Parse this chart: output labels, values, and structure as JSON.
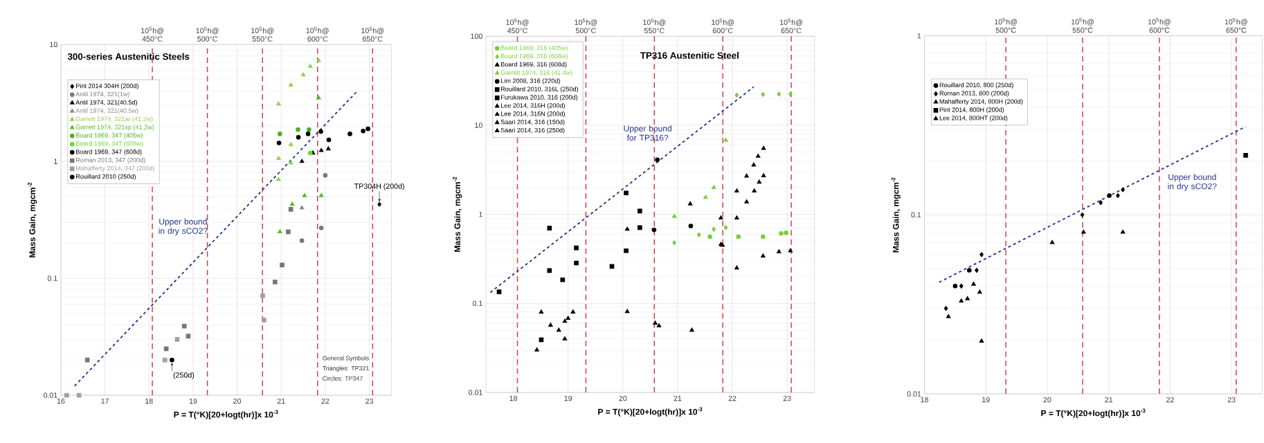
{
  "chart_data": [
    {
      "type": "scatter",
      "title": "300-series Austenitic Steels",
      "xlabel": "P = T(°K)[20+logt(hr)]x 10$^{-3}$",
      "ylabel": "Mass Gain, mgcm$^{-2}$",
      "log": true,
      "grid": true,
      "legend": "top left",
      "xlim": [
        16,
        23.5
      ],
      "xticks": [
        16,
        17,
        18,
        19,
        20,
        21,
        22,
        23
      ],
      "ylim": [
        0.01,
        10
      ],
      "yticks": [
        0.01,
        0.1,
        1,
        10
      ],
      "series": [
        {
          "name": "Pint 2014 304H (200d)",
          "color": "#000000",
          "marker": "diamond",
          "x": [
            23.23
          ],
          "values": [
            0.43
          ]
        },
        {
          "name": "Antil 1974, 321(1w)",
          "color": "#7a7a7a",
          "marker": "circle",
          "x": [
            21.47,
            21.91,
            22.0
          ],
          "values": [
            0.21,
            0.27,
            0.76
          ]
        },
        {
          "name": "Antil 1974, 321(40.5d)",
          "color": "#000000",
          "marker": "triangle",
          "x": [
            21.47,
            21.72,
            21.91,
            22.07
          ],
          "values": [
            1.0,
            1.18,
            1.24,
            1.28
          ]
        },
        {
          "name": "Antil 1974, 321(40.5w)",
          "color": "#8a8a8a",
          "marker": "triangle",
          "x": [
            21.47
          ],
          "values": [
            0.4
          ]
        },
        {
          "name": "Garrett 1974, 321ar (41.2w)",
          "color": "#8fd14f",
          "marker": "triangle",
          "x": [
            20.94,
            21.22,
            21.5,
            21.66,
            21.85,
            20.94,
            21.22,
            20.94,
            21.22
          ],
          "values": [
            3.1,
            4.5,
            5.5,
            6.5,
            7.3,
            1.06,
            1.39,
            0.7,
            0.97
          ]
        },
        {
          "name": "Garrett 1974, 321sp (41.2w)",
          "color": "#5cb82e",
          "marker": "triangle",
          "x": [
            21.85,
            21.53,
            21.91,
            21.25,
            20.97
          ],
          "values": [
            3.5,
            0.51,
            0.51,
            0.43,
            0.25
          ]
        },
        {
          "name": "Board 1969, 347 (405w)",
          "color": "#4caf2a",
          "marker": "circle",
          "x": [
            20.97,
            21.38,
            21.63
          ],
          "values": [
            1.72,
            1.87,
            1.87
          ]
        },
        {
          "name": "Board 1969, 347 (608w)",
          "color": "#66dd33",
          "marker": "circle",
          "x": [
            21.66
          ],
          "values": [
            1.18
          ]
        },
        {
          "name": "Board 1969, 347 (608d)",
          "color": "#000000",
          "marker": "circle",
          "x": [
            20.95,
            21.39,
            21.61,
            21.9,
            22.08,
            22.56,
            22.86,
            22.97
          ],
          "values": [
            1.44,
            1.61,
            1.72,
            1.8,
            1.53,
            1.72,
            1.82,
            1.9
          ]
        },
        {
          "name": "Roman 2013, 347 (200d)",
          "color": "#777777",
          "marker": "square",
          "x": [
            16.6,
            18.39,
            18.8,
            18.89,
            21.02,
            20.86,
            21.16,
            21.22
          ],
          "values": [
            0.02,
            0.025,
            0.039,
            0.032,
            0.13,
            0.093,
            0.25,
            0.39
          ]
        },
        {
          "name": "Mahafferty 2014, 347 (200d)",
          "color": "#a0a0a0",
          "marker": "square",
          "x": [
            16.13,
            16.41,
            20.58,
            20.61,
            18.64,
            18.36
          ],
          "values": [
            0.01,
            0.01,
            0.071,
            0.044,
            0.03,
            0.02
          ]
        },
        {
          "name": "Rouillard 2010 (250d)",
          "color": "#000000",
          "marker": "circle",
          "x": [
            18.52
          ],
          "values": [
            0.02
          ]
        },
        {
          "type": "line",
          "name": "Upper bound in dry sCO2?",
          "color": "#26348f",
          "line_style": "dashed",
          "marker": "none",
          "x": [
            16.31,
            22.7
          ],
          "values": [
            0.012,
            3.9
          ]
        }
      ],
      "ref_lines": [
        {
          "axis": "x",
          "value": 18.075,
          "label": "10$^{5}$h@ 450°C",
          "color": "#d9393e",
          "line_style": "dashed"
        },
        {
          "axis": "x",
          "value": 19.325,
          "label": "10$^{5}$h@ 500°C",
          "color": "#d9393e",
          "line_style": "dashed"
        },
        {
          "axis": "x",
          "value": 20.575,
          "label": "10$^{5}$h@ 550°C",
          "color": "#d9393e",
          "line_style": "dashed"
        },
        {
          "axis": "x",
          "value": 21.825,
          "label": "10$^{5}$h@ 600°C",
          "color": "#d9393e",
          "line_style": "dashed"
        },
        {
          "axis": "x",
          "value": 23.075,
          "label": "10$^{5}$h@ 650°C",
          "color": "#d9393e",
          "line_style": "dashed"
        }
      ],
      "annotations": [
        {
          "text": "TP304H (200d)",
          "x": 23.23,
          "y": 0.43
        },
        {
          "text": "(250d)",
          "x": 18.52,
          "y": 0.02
        },
        "General Symbols",
        "Triangles: TP321",
        "Circles: TP347"
      ]
    },
    {
      "type": "scatter",
      "title": "TP316 Austenitic Steel",
      "xlabel": "P = T(°K)[20+logt(hr)]x 10$^{-3}$",
      "ylabel": "Mass Gain, mgcm$^{-2}$",
      "log": true,
      "grid": true,
      "legend": "top left",
      "xlim": [
        17.5,
        23.5
      ],
      "xticks": [
        18,
        19,
        20,
        21,
        22,
        23
      ],
      "ylim": [
        0.01,
        100
      ],
      "yticks": [
        0.01,
        0.1,
        1,
        10,
        100
      ],
      "series": [
        {
          "name": "Board 1969, 316 (405w)",
          "color": "#7ccf3c",
          "marker": "circle",
          "x": [
            21.59,
            22.11,
            22.56,
            22.89,
            22.98
          ],
          "values": [
            0.56,
            0.56,
            0.56,
            0.61,
            0.62
          ]
        },
        {
          "name": "Board 1969, 316 (608w)",
          "color": "#7ccf3c",
          "marker": "diamond",
          "x": [
            22.08,
            22.56,
            22.85,
            23.06,
            20.94,
            21.39,
            21.66,
            21.88
          ],
          "values": [
            21.8,
            22.2,
            22.4,
            22.4,
            0.48,
            0.59,
            0.68,
            0.71
          ]
        },
        {
          "name": "Board 1969, 316 (608d)",
          "color": "#000000",
          "marker": "triangle",
          "x": [
            22.56,
            22.85,
            23.06,
            22.08,
            21.82
          ],
          "values": [
            0.34,
            0.38,
            0.39,
            0.25,
            0.45
          ]
        },
        {
          "name": "Garrett 1974, 316 (41.4w)",
          "color": "#7ccf3c",
          "marker": "triangle",
          "x": [
            21.88,
            21.66,
            21.51,
            20.94
          ],
          "values": [
            6.8,
            2.0,
            1.55,
            0.95
          ]
        },
        {
          "name": "Lim 2008, 316 (220d)",
          "color": "#000000",
          "marker": "circle",
          "x": [
            20.63,
            20.57,
            21.24
          ],
          "values": [
            4.1,
            0.67,
            0.74
          ]
        },
        {
          "name": "Rouillard 2010, 316L (250d)",
          "color": "#000000",
          "marker": "square",
          "x": [
            18.51
          ],
          "values": [
            0.039
          ]
        },
        {
          "name": "Furukawa 2010, 316 (200d)",
          "color": "#000000",
          "marker": "square",
          "x": [
            17.74,
            18.66,
            18.66,
            18.9,
            19.15,
            19.15,
            19.8,
            20.06,
            20.31,
            20.31,
            20.06
          ],
          "values": [
            0.135,
            0.7,
            0.234,
            0.184,
            0.42,
            0.284,
            0.26,
            0.39,
            0.71,
            1.09,
            1.74
          ]
        },
        {
          "name": "Lee 2014, 316H (200d)",
          "color": "#000000",
          "marker": "triangle",
          "x": [
            20.08,
            21.23,
            22.08
          ],
          "values": [
            0.081,
            1.31,
            0.91
          ]
        },
        {
          "name": "Lee 2014, 316N (200d)",
          "color": "#000000",
          "marker": "triangle",
          "x": [
            20.08,
            21.79
          ],
          "values": [
            0.68,
            0.46
          ]
        },
        {
          "name": "Saari 2014, 316 (150d)",
          "color": "#000000",
          "marker": "triangle",
          "x": [
            18.51,
            18.68,
            18.83,
            18.94,
            19.09,
            18.43,
            20.59,
            20.66,
            21.26,
            22.26,
            22.4,
            22.49
          ],
          "values": [
            0.08,
            0.057,
            0.05,
            0.063,
            0.08,
            0.03,
            0.06,
            0.056,
            0.05,
            1.38,
            1.83,
            2.3
          ]
        },
        {
          "name": "Saari 2014, 316 (250d)",
          "color": "#000000",
          "marker": "triangle",
          "x": [
            18.94,
            19.0,
            21.79,
            22.08,
            22.26,
            22.39,
            22.47,
            22.57,
            22.57
          ],
          "values": [
            0.04,
            0.068,
            0.91,
            1.83,
            2.69,
            3.59,
            4.49,
            5.5,
            2.72
          ]
        },
        {
          "type": "line",
          "name": "Upper bound for TP316?",
          "color": "#26348f",
          "line_style": "dashed",
          "marker": "none",
          "x": [
            17.58,
            22.39
          ],
          "values": [
            0.133,
            27
          ]
        }
      ],
      "ref_lines": [
        {
          "axis": "x",
          "value": 18.075,
          "label": "10$^{5}$h@ 450°C",
          "color": "#d9393e",
          "line_style": "dashed"
        },
        {
          "axis": "x",
          "value": 19.325,
          "label": "10$^{5}$h@ 500°C",
          "color": "#d9393e",
          "line_style": "dashed"
        },
        {
          "axis": "x",
          "value": 20.575,
          "label": "10$^{5}$h@ 550°C",
          "color": "#d9393e",
          "line_style": "dashed"
        },
        {
          "axis": "x",
          "value": 21.825,
          "label": "10$^{5}$h@ 600°C",
          "color": "#d9393e",
          "line_style": "dashed"
        },
        {
          "axis": "x",
          "value": 23.075,
          "label": "10$^{5}$h@ 650°C",
          "color": "#d9393e",
          "line_style": "dashed"
        }
      ]
    },
    {
      "type": "scatter",
      "xlabel": "P = T(°K)[20+logt(hr)]x 10$^{-3}$",
      "ylabel": "Mass Gain, mgcm$^{-2}$",
      "log": true,
      "grid": true,
      "legend": "top left",
      "xlim": [
        18,
        23.5
      ],
      "xticks": [
        18,
        19,
        20,
        21,
        22,
        23
      ],
      "ylim": [
        0.01,
        1
      ],
      "yticks": [
        0.01,
        0.1,
        1
      ],
      "series": [
        {
          "name": "Rouillard 2010, 800 (250d)",
          "color": "#000000",
          "marker": "circle",
          "x": [
            18.5,
            18.73,
            21.01
          ],
          "values": [
            0.04,
            0.049,
            0.128
          ]
        },
        {
          "name": "Roman 2013, 800 (200d)",
          "color": "#000000",
          "marker": "diamond",
          "x": [
            18.35,
            18.6,
            18.85,
            18.93,
            20.57,
            20.87,
            21.15,
            21.23
          ],
          "values": [
            0.03,
            0.04,
            0.049,
            0.06,
            0.1,
            0.117,
            0.128,
            0.138
          ]
        },
        {
          "name": "Mahafferty 2014, 800H (200d)",
          "color": "#000000",
          "marker": "triangle",
          "x": [
            18.39,
            18.6,
            18.7,
            18.8,
            18.9,
            20.59
          ],
          "values": [
            0.027,
            0.033,
            0.034,
            0.041,
            0.037,
            0.08
          ]
        },
        {
          "name": "Pint 2014, 800H (200d)",
          "color": "#000000",
          "marker": "square",
          "x": [
            23.23
          ],
          "values": [
            0.215
          ]
        },
        {
          "name": "Lee 2014, 800HT (200d)",
          "color": "#000000",
          "marker": "triangle",
          "x": [
            18.93,
            20.08,
            21.23
          ],
          "values": [
            0.0197,
            0.07,
            0.08
          ]
        },
        {
          "type": "line",
          "name": "Upper bound in dry sCO2?",
          "color": "#26348f",
          "line_style": "dashed",
          "marker": "none",
          "x": [
            18.24,
            23.23
          ],
          "values": [
            0.042,
            0.311
          ]
        }
      ],
      "ref_lines": [
        {
          "axis": "x",
          "value": 19.325,
          "label": "10$^{5}$h@ 500°C",
          "color": "#d9393e",
          "line_style": "dashed"
        },
        {
          "axis": "x",
          "value": 20.575,
          "label": "10$^{5}$h@ 550°C",
          "color": "#d9393e",
          "line_style": "dashed"
        },
        {
          "axis": "x",
          "value": 21.825,
          "label": "10$^{5}$h@ 600°C",
          "color": "#d9393e",
          "line_style": "dashed"
        },
        {
          "axis": "x",
          "value": 23.075,
          "label": "10$^{5}$h@ 650°C",
          "color": "#d9393e",
          "line_style": "dashed"
        }
      ]
    }
  ]
}
